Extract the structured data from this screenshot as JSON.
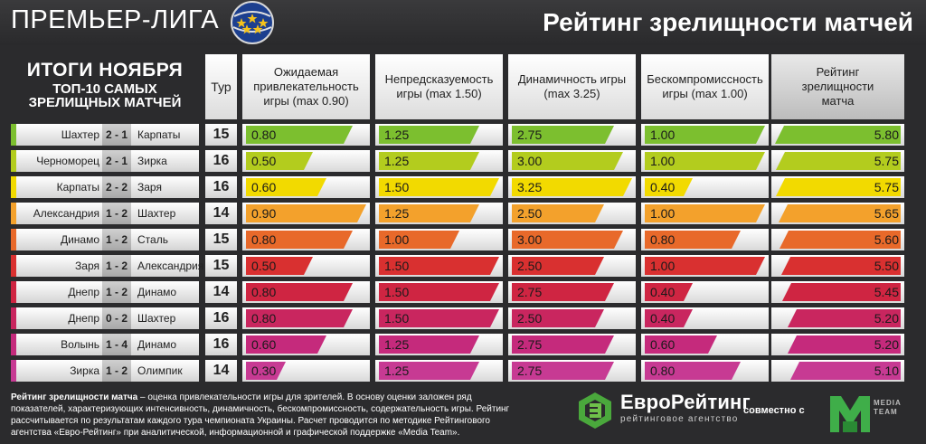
{
  "header": {
    "league_title": "ПРЕМЬЕР-ЛИГА",
    "heading": "Рейтинг зрелищности матчей"
  },
  "summary": {
    "line1": "ИТОГИ НОЯБРЯ",
    "line2": "ТОП-10 САМЫХ",
    "line3": "ЗРЕЛИЩНЫХ МАТЧЕЙ"
  },
  "columns": {
    "tour": "Тур",
    "expected": "Ожидаемая привлекательность игры (max 0.90)",
    "unpredictability": "Непредсказуемость игры (max 1.50)",
    "dynamics": "Динамичность игры (max 3.25)",
    "uncompromising": "Бескомпромиссность игры (max 1.00)",
    "rating": "Рейтинг зрелищности матча"
  },
  "max_values": {
    "expected": 0.9,
    "unpredictability": 1.5,
    "dynamics": 3.25,
    "uncompromising": 1.0,
    "rating": 5.8
  },
  "rows": [
    {
      "home": "Шахтер",
      "score": "2 - 1",
      "away": "Карпаты",
      "tour": "15",
      "expected": "0.80",
      "unpredictability": "1.25",
      "dynamics": "2.75",
      "uncompromising": "1.00",
      "rating": "5.80",
      "color": "#7cbf2f"
    },
    {
      "home": "Черноморец",
      "score": "2 - 1",
      "away": "Зирка",
      "tour": "16",
      "expected": "0.50",
      "unpredictability": "1.25",
      "dynamics": "3.00",
      "uncompromising": "1.00",
      "rating": "5.75",
      "color": "#b3cc1e"
    },
    {
      "home": "Карпаты",
      "score": "2 - 2",
      "away": "Заря",
      "tour": "16",
      "expected": "0.60",
      "unpredictability": "1.50",
      "dynamics": "3.25",
      "uncompromising": "0.40",
      "rating": "5.75",
      "color": "#f2da00"
    },
    {
      "home": "Александрия",
      "score": "1 - 2",
      "away": "Шахтер",
      "tour": "14",
      "expected": "0.90",
      "unpredictability": "1.25",
      "dynamics": "2.50",
      "uncompromising": "1.00",
      "rating": "5.65",
      "color": "#f3a12c"
    },
    {
      "home": "Динамо",
      "score": "1 - 2",
      "away": "Сталь",
      "tour": "15",
      "expected": "0.80",
      "unpredictability": "1.00",
      "dynamics": "3.00",
      "uncompromising": "0.80",
      "rating": "5.60",
      "color": "#e8692a"
    },
    {
      "home": "Заря",
      "score": "1 - 2",
      "away": "Александрия",
      "tour": "15",
      "expected": "0.50",
      "unpredictability": "1.50",
      "dynamics": "2.50",
      "uncompromising": "1.00",
      "rating": "5.50",
      "color": "#d93030"
    },
    {
      "home": "Днепр",
      "score": "1 - 2",
      "away": "Динамо",
      "tour": "14",
      "expected": "0.80",
      "unpredictability": "1.50",
      "dynamics": "2.75",
      "uncompromising": "0.40",
      "rating": "5.45",
      "color": "#cf2542"
    },
    {
      "home": "Днепр",
      "score": "0 - 2",
      "away": "Шахтер",
      "tour": "16",
      "expected": "0.80",
      "unpredictability": "1.50",
      "dynamics": "2.50",
      "uncompromising": "0.40",
      "rating": "5.20",
      "color": "#c9265f"
    },
    {
      "home": "Волынь",
      "score": "1 - 4",
      "away": "Динамо",
      "tour": "16",
      "expected": "0.60",
      "unpredictability": "1.25",
      "dynamics": "2.75",
      "uncompromising": "0.60",
      "rating": "5.20",
      "color": "#c52a7c"
    },
    {
      "home": "Зирка",
      "score": "1 - 2",
      "away": "Олимпик",
      "tour": "14",
      "expected": "0.30",
      "unpredictability": "1.25",
      "dynamics": "2.75",
      "uncompromising": "0.80",
      "rating": "5.10",
      "color": "#c73a93"
    }
  ],
  "footnote": {
    "term": "Рейтинг зрелищности матча",
    "text": " – оценка привлекательности игры для зрителей. В основу оценки заложен ряд показателей, характеризующих интенсивность, динамичность, бескомпромиссность, содержательность игры. Рейтинг рассчитывается по результатам каждого тура чемпионата Украины. Расчет проводится по методике Рейтингового агентства «Евро-Рейтинг» при аналитической, информационной и графической поддержке «Media Team»."
  },
  "partners": {
    "euro_name": "ЕвроРейтинг",
    "euro_sub": "рейтинговое агентство",
    "together": "совместно с",
    "mt_line1": "MEDIA",
    "mt_line2": "TEAM"
  }
}
